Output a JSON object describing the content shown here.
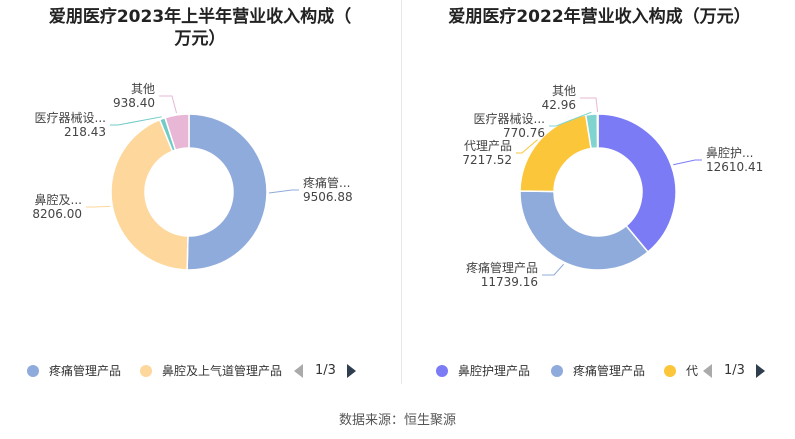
{
  "colors": {
    "blue_light": "#8fabdb",
    "peach": "#fdd79c",
    "teal": "#6fcbc6",
    "pink": "#e8b7d6",
    "purple": "#7b7cf5",
    "yellow": "#fcc63a",
    "cyan": "#7fd4d0"
  },
  "source_label": "数据来源：恒生聚源",
  "chart_data": [
    {
      "type": "pie",
      "donut": true,
      "title": "爱朋医疗2023年上半年营业收入构成（万元）",
      "title_lines": [
        "爱朋医疗2023年上半年营业收入构成（",
        "万元）"
      ],
      "slices": [
        {
          "name": "疼痛管理产品",
          "label": "疼痛管...",
          "value": 9506.88,
          "value_text": "9506.88",
          "color": "#8fabdb"
        },
        {
          "name": "鼻腔及上气道管理产品",
          "label": "鼻腔及...",
          "value": 8206.0,
          "value_text": "8206.00",
          "color": "#fdd79c"
        },
        {
          "name": "医疗器械设...",
          "label": "医疗器械设...",
          "value": 218.43,
          "value_text": "218.43",
          "color": "#6fcbc6"
        },
        {
          "name": "其他",
          "label": "其他",
          "value": 938.4,
          "value_text": "938.40",
          "color": "#e8b7d6"
        }
      ],
      "legend": {
        "items": [
          {
            "label": "疼痛管理产品",
            "color": "#8fabdb"
          },
          {
            "label": "鼻腔及上气道管理产品",
            "color": "#fdd79c"
          }
        ],
        "page": "1/3"
      }
    },
    {
      "type": "pie",
      "donut": true,
      "title": "爱朋医疗2022年营业收入构成（万元）",
      "title_lines": [
        "爱朋医疗2022年营业收入构成（万元）"
      ],
      "slices": [
        {
          "name": "鼻腔护理产品",
          "label": "鼻腔护...",
          "value": 12610.41,
          "value_text": "12610.41",
          "color": "#7b7cf5"
        },
        {
          "name": "疼痛管理产品",
          "label": "疼痛管理产品",
          "value": 11739.16,
          "value_text": "11739.16",
          "color": "#8fabdb"
        },
        {
          "name": "代理产品",
          "label": "代理产品",
          "value": 7217.52,
          "value_text": "7217.52",
          "color": "#fcc63a"
        },
        {
          "name": "医疗器械设...",
          "label": "医疗器械设...",
          "value": 770.76,
          "value_text": "770.76",
          "color": "#7fd4d0"
        },
        {
          "name": "其他",
          "label": "其他",
          "value": 42.96,
          "value_text": "42.96",
          "color": "#e8b7d6"
        }
      ],
      "legend": {
        "items": [
          {
            "label": "鼻腔护理产品",
            "color": "#7b7cf5"
          },
          {
            "label": "疼痛管理产品",
            "color": "#8fabdb"
          },
          {
            "label": "代",
            "color": "#fcc63a"
          }
        ],
        "page": "1/3"
      }
    }
  ]
}
